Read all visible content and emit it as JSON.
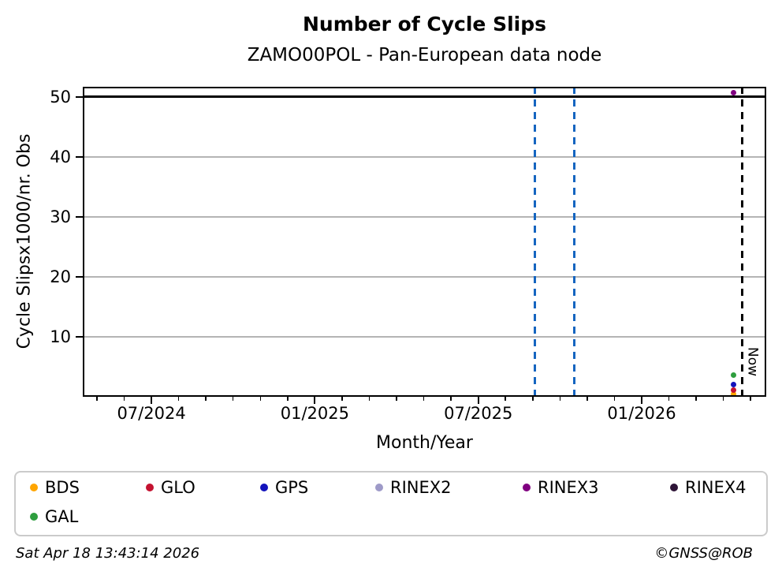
{
  "page": {
    "title": "Number of Cycle Slips",
    "subtitle": "ZAMO00POL - Pan-European data node",
    "footer_timestamp": "Sat Apr 18 13:43:14 2026",
    "footer_credit": "©GNSS@ROB"
  },
  "chart_data": {
    "type": "scatter",
    "title": "Number of Cycle Slips",
    "subtitle": "ZAMO00POL - Pan-European data node",
    "xlabel": "Month/Year",
    "ylabel": "Cycle Slipsx1000/nr. Obs",
    "x_axis": {
      "unit": "decimal_year",
      "range": [
        2024.29,
        2026.381
      ],
      "major_ticks": [
        {
          "value": 2024.5,
          "label": "07/2024"
        },
        {
          "value": 2025.0,
          "label": "01/2025"
        },
        {
          "value": 2025.5,
          "label": "07/2025"
        },
        {
          "value": 2026.0,
          "label": "01/2026"
        }
      ],
      "minor_ticks": {
        "start": 2024.3333,
        "step_years": 0.0833333,
        "end": 2026.3333
      }
    },
    "y_axis": {
      "range": [
        0,
        51.7
      ],
      "ticks": [
        10,
        20,
        30,
        40,
        50
      ],
      "gridlines": [
        10,
        20,
        30,
        40
      ],
      "gridline_color": "#b4b4b4"
    },
    "threshold_line": {
      "y": 50,
      "color": "#000000",
      "style": "solid"
    },
    "event_lines": [
      {
        "x": 2025.672,
        "color": "#1565C0",
        "style": "dashed"
      },
      {
        "x": 2025.793,
        "color": "#1565C0",
        "style": "dashed"
      }
    ],
    "now_line": {
      "x": 2026.307,
      "label": "Now",
      "color": "#000000",
      "style": "dashed"
    },
    "series": [
      {
        "name": "BDS",
        "color": "#FFA500",
        "points": [
          {
            "x": 2026.28,
            "y": 0.5
          }
        ]
      },
      {
        "name": "GLO",
        "color": "#C41230",
        "points": [
          {
            "x": 2026.28,
            "y": 1.1
          }
        ]
      },
      {
        "name": "GPS",
        "color": "#1313BC",
        "points": [
          {
            "x": 2026.28,
            "y": 2.0
          }
        ]
      },
      {
        "name": "RINEX2",
        "color": "#9E9AC8",
        "points": []
      },
      {
        "name": "RINEX3",
        "color": "#800080",
        "points": [
          {
            "x": 2026.28,
            "y": 50.7
          }
        ]
      },
      {
        "name": "RINEX4",
        "color": "#2E1437",
        "points": []
      },
      {
        "name": "GAL",
        "color": "#2E9E3E",
        "points": [
          {
            "x": 2026.28,
            "y": 3.6
          }
        ]
      }
    ],
    "legend": [
      "BDS",
      "GLO",
      "GPS",
      "RINEX2",
      "RINEX3",
      "RINEX4",
      "GAL"
    ],
    "legend_position": "below"
  }
}
